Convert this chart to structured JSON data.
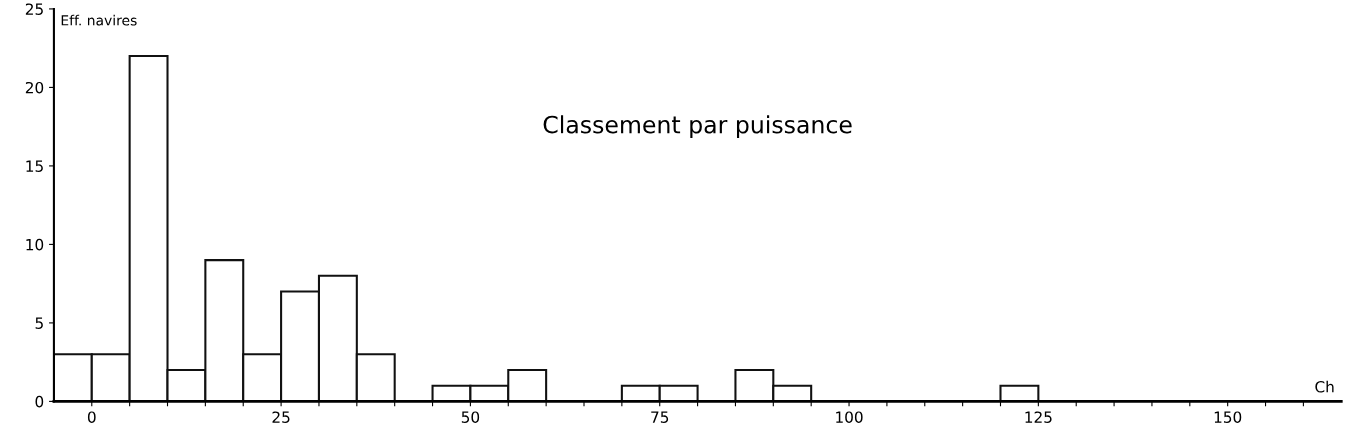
{
  "chart_data": {
    "type": "histogram",
    "title": "Classement par puissance",
    "xlabel": "Ch",
    "ylabel": "Eff. navires",
    "bins": [
      -5,
      0,
      5,
      10,
      15,
      20,
      25,
      30,
      35,
      40,
      45,
      50,
      55,
      60,
      65,
      70,
      75,
      80,
      85,
      90,
      95,
      100,
      105,
      110,
      115,
      120,
      125
    ],
    "values": [
      3,
      3,
      22,
      2,
      9,
      3,
      7,
      8,
      3,
      0,
      1,
      1,
      2,
      0,
      0,
      1,
      1,
      0,
      2,
      1,
      0,
      0,
      0,
      0,
      0,
      1
    ],
    "color": "#ffffff",
    "xlim": [
      -5,
      165
    ],
    "ylim": [
      0,
      25
    ],
    "xticks": [
      0,
      {
        "value": 5,
        "label": null
      },
      {
        "value": 10,
        "label": null
      },
      {
        "value": 15,
        "label": null
      },
      {
        "value": 20,
        "label": null
      },
      25,
      {
        "value": 30,
        "label": null
      },
      {
        "value": 35,
        "label": null
      },
      {
        "value": 40,
        "label": null
      },
      {
        "value": 45,
        "label": null
      },
      50,
      {
        "value": 55,
        "label": null
      },
      {
        "value": 60,
        "label": null
      },
      {
        "value": 65,
        "label": null
      },
      {
        "value": 70,
        "label": null
      },
      75,
      {
        "value": 80,
        "label": null
      },
      {
        "value": 85,
        "label": null
      },
      {
        "value": 90,
        "label": null
      },
      {
        "value": 95,
        "label": null
      },
      100,
      {
        "value": 105,
        "label": null
      },
      {
        "value": 110,
        "label": null
      },
      {
        "value": 115,
        "label": null
      },
      {
        "value": 120,
        "label": null
      },
      125,
      {
        "value": 130,
        "label": null
      },
      {
        "value": 135,
        "label": null
      },
      {
        "value": 140,
        "label": null
      },
      {
        "value": 145,
        "label": null
      },
      150,
      {
        "value": 155,
        "label": null
      },
      {
        "value": 160,
        "label": null
      }
    ],
    "yticks": [
      0,
      5,
      10,
      15,
      20,
      25
    ],
    "grid": false
  }
}
